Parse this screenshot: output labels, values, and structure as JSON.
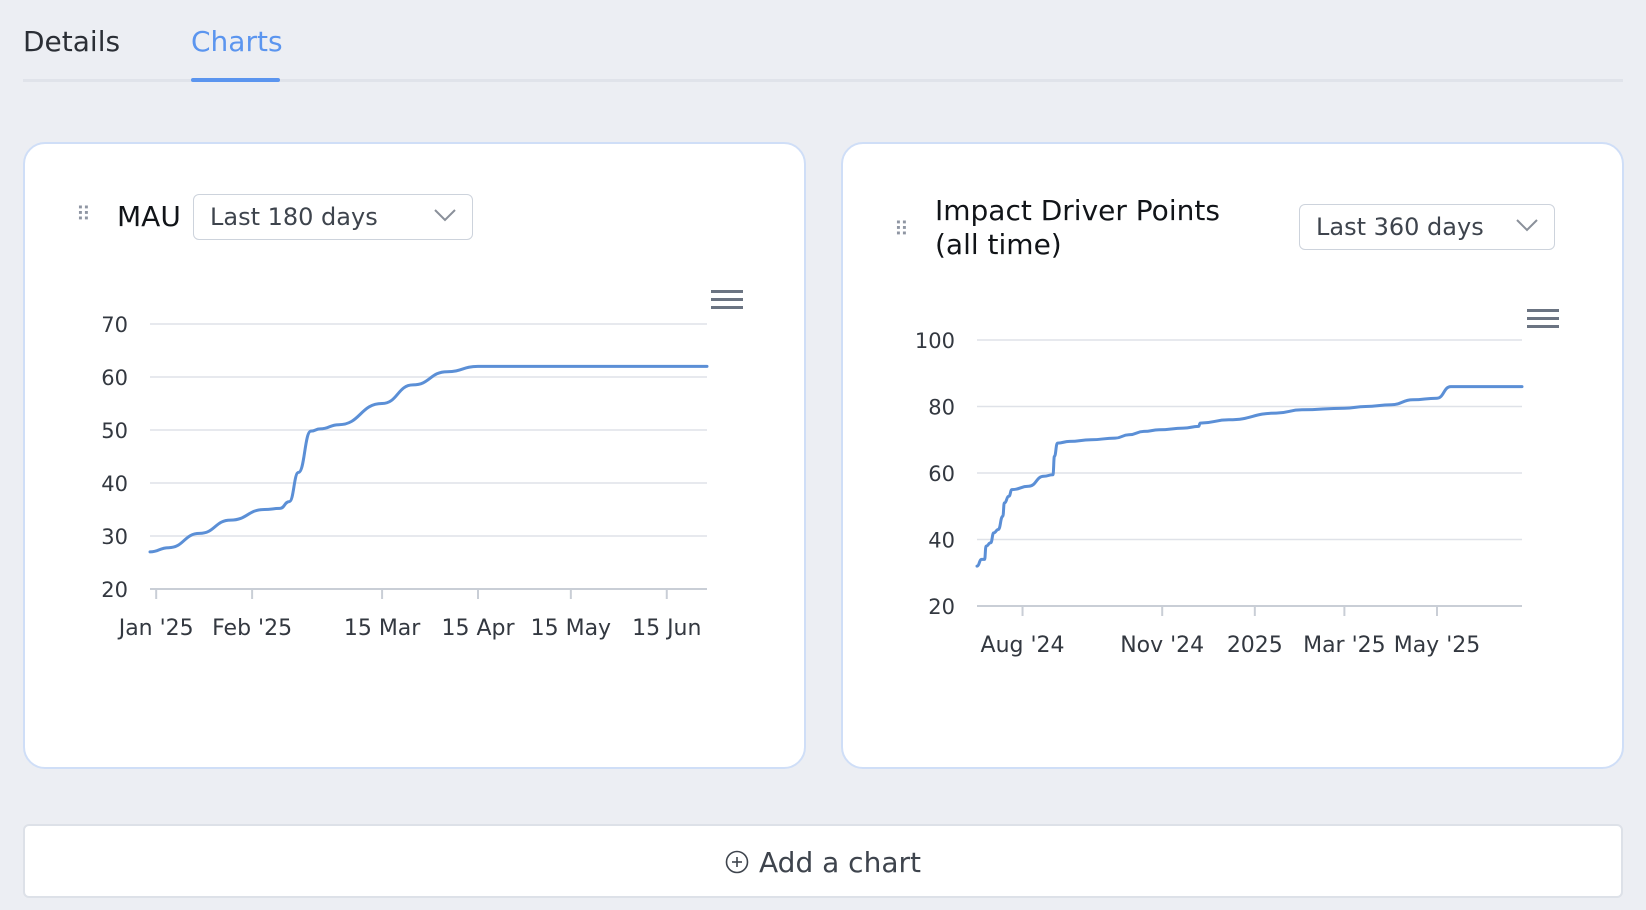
{
  "tabs": [
    {
      "label": "Details",
      "active": false
    },
    {
      "label": "Charts",
      "active": true
    }
  ],
  "colors": {
    "accent": "#5b95ef",
    "line": "#5b8fd6",
    "grid": "#dfe2e8"
  },
  "cards": [
    {
      "title": "MAU",
      "range": "Last 180 days"
    },
    {
      "title": "Impact Driver Points (all time)",
      "range": "Last 360 days"
    }
  ],
  "add_chart": {
    "label": "Add a chart",
    "icon": "plus-circle-icon"
  },
  "chart_data": [
    {
      "type": "line",
      "title": "MAU",
      "ylim": [
        20,
        70
      ],
      "yticks": [
        20,
        30,
        40,
        50,
        60,
        70
      ],
      "x_tick_labels": [
        "Jan '25",
        "Feb '25",
        "15 Mar",
        "15 Apr",
        "15 May",
        "15 Jun"
      ],
      "x_tick_dates": [
        "2025-01-01",
        "2025-02-01",
        "2025-03-15",
        "2025-04-15",
        "2025-05-15",
        "2025-06-15"
      ],
      "xlim": [
        "2024-12-30",
        "2025-06-28"
      ],
      "grid": true,
      "series": [
        {
          "x": [
            "2024-12-30",
            "2025-01-05",
            "2025-01-15",
            "2025-01-25",
            "2025-02-05",
            "2025-02-10",
            "2025-02-13",
            "2025-02-16",
            "2025-02-20",
            "2025-02-23",
            "2025-03-01",
            "2025-03-15",
            "2025-03-25",
            "2025-04-05",
            "2025-04-15",
            "2025-04-20",
            "2025-06-28"
          ],
          "values": [
            27,
            27.8,
            30.5,
            33,
            35,
            35.2,
            36.5,
            42,
            49.8,
            50.2,
            51,
            55,
            58.5,
            61,
            62,
            62,
            62
          ]
        }
      ]
    },
    {
      "type": "line",
      "title": "Impact Driver Points (all time)",
      "ylim": [
        20,
        100
      ],
      "yticks": [
        20,
        40,
        60,
        80,
        100
      ],
      "x_tick_labels": [
        "Aug '24",
        "Nov '24",
        "2025",
        "Mar '25",
        "May '25"
      ],
      "x_tick_dates": [
        "2024-08-01",
        "2024-11-01",
        "2025-01-01",
        "2025-03-01",
        "2025-05-01"
      ],
      "xlim": [
        "2024-07-02",
        "2025-06-26"
      ],
      "grid": true,
      "series": [
        {
          "x": [
            "2024-07-02",
            "2024-07-05",
            "2024-07-07",
            "2024-07-08",
            "2024-07-11",
            "2024-07-13",
            "2024-07-16",
            "2024-07-19",
            "2024-07-20",
            "2024-07-23",
            "2024-07-25",
            "2024-08-05",
            "2024-08-15",
            "2024-08-21",
            "2024-08-22",
            "2024-08-24",
            "2024-09-01",
            "2024-09-15",
            "2024-10-01",
            "2024-10-10",
            "2024-10-20",
            "2024-10-30",
            "2024-11-15",
            "2024-11-25",
            "2024-11-26",
            "2024-12-15",
            "2025-01-15",
            "2025-02-01",
            "2025-03-01",
            "2025-03-15",
            "2025-04-01",
            "2025-04-15",
            "2025-05-01",
            "2025-05-10",
            "2025-06-26"
          ],
          "values": [
            32,
            34,
            34,
            38,
            39,
            42,
            43,
            47,
            51,
            53,
            55,
            56,
            59,
            59.5,
            65,
            69,
            69.5,
            70,
            70.5,
            71.5,
            72.5,
            73,
            73.5,
            74,
            75,
            76,
            78,
            79,
            79.5,
            80,
            80.5,
            82,
            82.5,
            86,
            86
          ]
        }
      ]
    }
  ]
}
